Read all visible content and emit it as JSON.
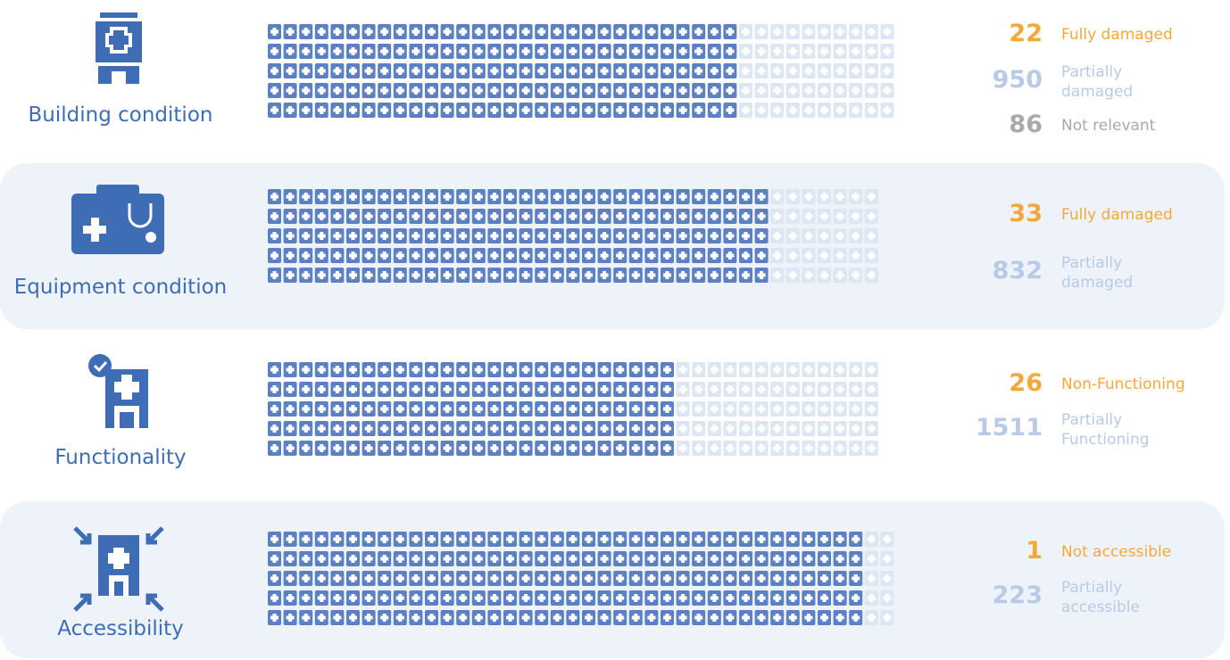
{
  "sections": [
    {
      "title": "Building condition",
      "stats": [
        {
          "value": 22,
          "kind": "full",
          "label": [
            "Fully damaged"
          ]
        },
        {
          "value": 950,
          "kind": "partial",
          "label": [
            "Partially",
            "damaged"
          ]
        },
        {
          "value": 86,
          "kind": "none",
          "label": [
            "Not relevant"
          ]
        }
      ]
    },
    {
      "title": "Equipment condition",
      "stats": [
        {
          "value": 33,
          "kind": "full",
          "label": [
            "Fully damaged"
          ]
        },
        {
          "value": 832,
          "kind": "partial",
          "label": [
            "Partially",
            "damaged"
          ]
        }
      ]
    },
    {
      "title": "Functionality",
      "stats": [
        {
          "value": 26,
          "kind": "full",
          "label": [
            "Non-Functioning"
          ]
        },
        {
          "value": 1511,
          "kind": "partial",
          "label": [
            "Partially",
            "Functioning"
          ]
        }
      ]
    },
    {
      "title": "Accessibility",
      "stats": [
        {
          "value": 1,
          "kind": "full",
          "label": [
            "Not accessible"
          ]
        },
        {
          "value": 223,
          "kind": "partial",
          "label": [
            "Partially",
            "accessible"
          ]
        }
      ]
    }
  ]
}
